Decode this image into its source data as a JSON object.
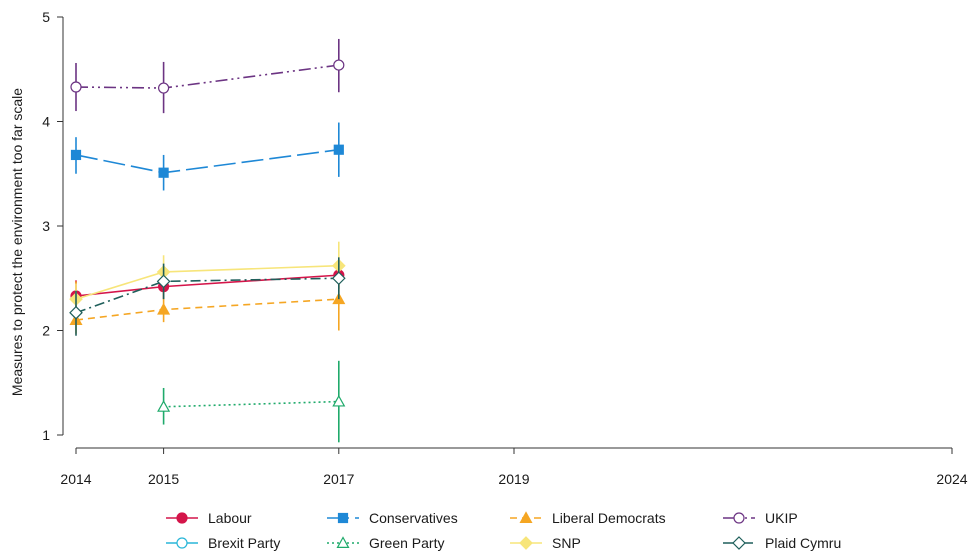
{
  "chart_data": {
    "type": "line",
    "title": "",
    "ylabel": "Measures to protect the environment too far scale",
    "xlabel": "",
    "xlim": [
      2014,
      2024
    ],
    "ylim": [
      1,
      5
    ],
    "x_ticks": [
      "2014",
      "2015",
      "2017",
      "2019",
      "2024"
    ],
    "y_ticks": [
      "1",
      "2",
      "3",
      "4",
      "5"
    ],
    "grid": false,
    "legend_position": "bottom",
    "series": [
      {
        "name": "Labour",
        "color": "#d4154a",
        "dash": "solid",
        "marker": "circle-filled",
        "x": [
          2014,
          2015,
          2017
        ],
        "y": [
          2.33,
          2.42,
          2.53
        ],
        "ci": [
          [
            2.18,
            2.48
          ],
          [
            2.3,
            2.54
          ],
          [
            2.4,
            2.66
          ]
        ]
      },
      {
        "name": "Conservatives",
        "color": "#1e88d6",
        "dash": "longdash",
        "marker": "square-filled",
        "x": [
          2014,
          2015,
          2017
        ],
        "y": [
          3.68,
          3.51,
          3.73
        ],
        "ci": [
          [
            3.5,
            3.85
          ],
          [
            3.34,
            3.68
          ],
          [
            3.47,
            3.99
          ]
        ]
      },
      {
        "name": "Liberal Democrats",
        "color": "#f5a623",
        "dash": "dash",
        "marker": "triangle-filled",
        "x": [
          2014,
          2015,
          2017
        ],
        "y": [
          2.1,
          2.2,
          2.3
        ],
        "ci": [
          [
            1.97,
            2.47
          ],
          [
            2.08,
            2.38
          ],
          [
            2.0,
            2.6
          ]
        ]
      },
      {
        "name": "UKIP",
        "color": "#6c3483",
        "dash": "dashdotdot",
        "marker": "circle-open",
        "x": [
          2014,
          2015,
          2017
        ],
        "y": [
          4.33,
          4.32,
          4.54
        ],
        "ci": [
          [
            4.1,
            4.56
          ],
          [
            4.08,
            4.57
          ],
          [
            4.28,
            4.79
          ]
        ]
      },
      {
        "name": "Brexit Party",
        "color": "#29b6d8",
        "dash": "solid",
        "marker": "circle-open",
        "x": [],
        "y": [],
        "ci": []
      },
      {
        "name": "Green Party",
        "color": "#1faa6b",
        "dash": "dot",
        "marker": "triangle-open",
        "x": [
          2015,
          2017
        ],
        "y": [
          1.27,
          1.32
        ],
        "ci": [
          [
            1.1,
            1.45
          ],
          [
            0.93,
            1.71
          ]
        ]
      },
      {
        "name": "SNP",
        "color": "#f7e57a",
        "dash": "solid",
        "marker": "diamond-filled",
        "x": [
          2014,
          2015,
          2017
        ],
        "y": [
          2.3,
          2.56,
          2.62
        ],
        "ci": [
          [
            2.15,
            2.45
          ],
          [
            2.4,
            2.72
          ],
          [
            2.4,
            2.85
          ]
        ]
      },
      {
        "name": "Plaid Cymru",
        "color": "#1f5f5b",
        "dash": "dashdot",
        "marker": "diamond-open",
        "x": [
          2014,
          2015,
          2017
        ],
        "y": [
          2.17,
          2.47,
          2.5
        ],
        "ci": [
          [
            1.95,
            2.38
          ],
          [
            2.3,
            2.64
          ],
          [
            2.3,
            2.7
          ]
        ]
      }
    ]
  }
}
